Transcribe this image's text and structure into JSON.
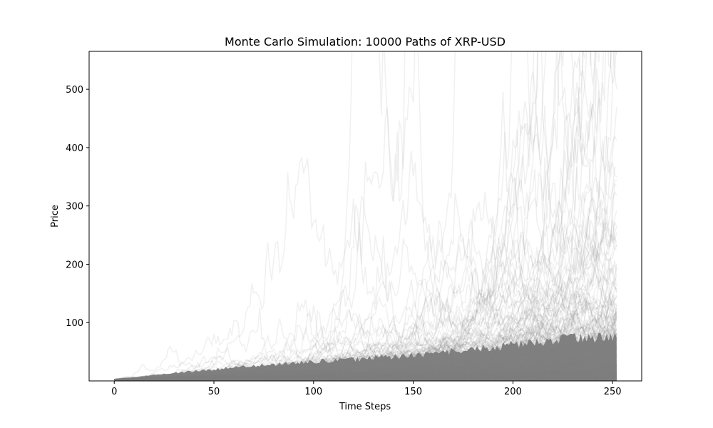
{
  "chart_data": {
    "type": "line",
    "title": "Monte Carlo Simulation: 10000 Paths of XRP-USD",
    "xlabel": "Time Steps",
    "ylabel": "Price",
    "xlim": [
      -12.6,
      264.6
    ],
    "ylim": [
      0,
      565
    ],
    "xticks": [
      0,
      50,
      100,
      150,
      200,
      250
    ],
    "yticks": [
      100,
      200,
      300,
      400,
      500
    ],
    "n_paths": 10000,
    "n_steps": 252,
    "start_price": 2.5,
    "line_color": "#808080",
    "grid": false,
    "legend": "none",
    "envelope": {
      "x": [
        0,
        25,
        50,
        75,
        100,
        125,
        150,
        175,
        200,
        225,
        252
      ],
      "dense_max": [
        2.5,
        12,
        20,
        27,
        33,
        38,
        44,
        52,
        62,
        72,
        76
      ],
      "mid_max": [
        2.5,
        35,
        60,
        90,
        120,
        160,
        200,
        240,
        290,
        330,
        350
      ]
    }
  }
}
